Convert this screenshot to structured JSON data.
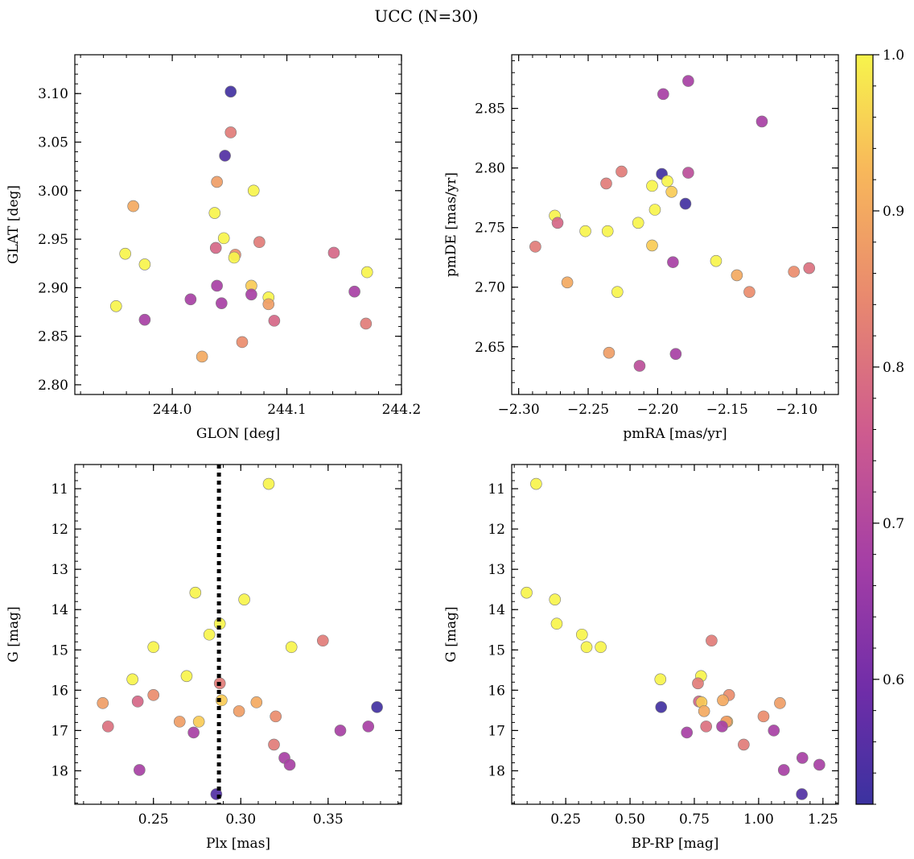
{
  "title": "UCC (N=30)",
  "colorbar": {
    "range": [
      0.52,
      1.0
    ],
    "ticks": [
      0.6,
      0.7,
      0.8,
      0.9,
      1.0
    ],
    "tick_labels": [
      "0.6",
      "0.7",
      "0.8",
      "0.9",
      "1.0"
    ],
    "colormap": "plasma"
  },
  "chart_data": [
    {
      "type": "scatter",
      "xlabel": "GLON [deg]",
      "ylabel": "GLAT [deg]",
      "xlim": [
        243.915,
        244.2
      ],
      "ylim": [
        2.79,
        3.14
      ],
      "xticks": [
        244.0,
        244.1,
        244.2
      ],
      "xtick_labels": [
        "244.0",
        "244.1",
        "244.2"
      ],
      "yticks": [
        2.8,
        2.85,
        2.9,
        2.95,
        3.0,
        3.05,
        3.1
      ],
      "ytick_labels": [
        "2.80",
        "2.85",
        "2.90",
        "2.95",
        "3.00",
        "3.05",
        "3.10"
      ],
      "points": [
        {
          "x": 244.051,
          "y": 3.102,
          "c": 0.53
        },
        {
          "x": 244.051,
          "y": 3.06,
          "c": 0.82
        },
        {
          "x": 244.046,
          "y": 3.036,
          "c": 0.55
        },
        {
          "x": 244.039,
          "y": 3.009,
          "c": 0.88
        },
        {
          "x": 244.071,
          "y": 3.0,
          "c": 1.0
        },
        {
          "x": 243.966,
          "y": 2.984,
          "c": 0.9
        },
        {
          "x": 244.037,
          "y": 2.977,
          "c": 1.0
        },
        {
          "x": 244.045,
          "y": 2.951,
          "c": 1.0
        },
        {
          "x": 244.076,
          "y": 2.947,
          "c": 0.82
        },
        {
          "x": 244.038,
          "y": 2.941,
          "c": 0.78
        },
        {
          "x": 243.959,
          "y": 2.935,
          "c": 1.0
        },
        {
          "x": 244.055,
          "y": 2.934,
          "c": 0.85
        },
        {
          "x": 244.054,
          "y": 2.931,
          "c": 1.0
        },
        {
          "x": 244.141,
          "y": 2.936,
          "c": 0.78
        },
        {
          "x": 243.976,
          "y": 2.924,
          "c": 1.0
        },
        {
          "x": 244.17,
          "y": 2.916,
          "c": 1.0
        },
        {
          "x": 244.039,
          "y": 2.902,
          "c": 0.68
        },
        {
          "x": 244.069,
          "y": 2.902,
          "c": 0.95
        },
        {
          "x": 244.159,
          "y": 2.896,
          "c": 0.68
        },
        {
          "x": 244.069,
          "y": 2.893,
          "c": 0.68
        },
        {
          "x": 244.084,
          "y": 2.89,
          "c": 1.0
        },
        {
          "x": 244.016,
          "y": 2.888,
          "c": 0.68
        },
        {
          "x": 244.043,
          "y": 2.884,
          "c": 0.68
        },
        {
          "x": 244.084,
          "y": 2.883,
          "c": 0.88
        },
        {
          "x": 243.951,
          "y": 2.881,
          "c": 1.0
        },
        {
          "x": 243.976,
          "y": 2.867,
          "c": 0.68
        },
        {
          "x": 244.089,
          "y": 2.866,
          "c": 0.78
        },
        {
          "x": 244.169,
          "y": 2.863,
          "c": 0.82
        },
        {
          "x": 244.061,
          "y": 2.844,
          "c": 0.85
        },
        {
          "x": 244.026,
          "y": 2.829,
          "c": 0.9
        }
      ]
    },
    {
      "type": "scatter",
      "xlabel": "pmRA [mas/yr]",
      "ylabel": "pmDE [mas/yr]",
      "xlim": [
        -2.305,
        -2.07
      ],
      "ylim": [
        2.61,
        2.895
      ],
      "xticks": [
        -2.3,
        -2.25,
        -2.2,
        -2.15,
        -2.1
      ],
      "xtick_labels": [
        "−2.30",
        "−2.25",
        "−2.20",
        "−2.15",
        "−2.10"
      ],
      "yticks": [
        2.65,
        2.7,
        2.75,
        2.8,
        2.85
      ],
      "ytick_labels": [
        "2.65",
        "2.70",
        "2.75",
        "2.80",
        "2.85"
      ],
      "points": [
        {
          "x": -2.178,
          "y": 2.873,
          "c": 0.68
        },
        {
          "x": -2.196,
          "y": 2.862,
          "c": 0.68
        },
        {
          "x": -2.125,
          "y": 2.839,
          "c": 0.68
        },
        {
          "x": -2.226,
          "y": 2.797,
          "c": 0.82
        },
        {
          "x": -2.178,
          "y": 2.796,
          "c": 0.72
        },
        {
          "x": -2.197,
          "y": 2.795,
          "c": 0.53
        },
        {
          "x": -2.193,
          "y": 2.789,
          "c": 1.0
        },
        {
          "x": -2.237,
          "y": 2.787,
          "c": 0.82
        },
        {
          "x": -2.204,
          "y": 2.785,
          "c": 1.0
        },
        {
          "x": -2.19,
          "y": 2.78,
          "c": 0.95
        },
        {
          "x": -2.18,
          "y": 2.77,
          "c": 0.53
        },
        {
          "x": -2.202,
          "y": 2.765,
          "c": 1.0
        },
        {
          "x": -2.274,
          "y": 2.76,
          "c": 1.0
        },
        {
          "x": -2.272,
          "y": 2.754,
          "c": 0.78
        },
        {
          "x": -2.214,
          "y": 2.754,
          "c": 1.0
        },
        {
          "x": -2.252,
          "y": 2.747,
          "c": 1.0
        },
        {
          "x": -2.236,
          "y": 2.747,
          "c": 1.0
        },
        {
          "x": -2.204,
          "y": 2.735,
          "c": 0.95
        },
        {
          "x": -2.288,
          "y": 2.734,
          "c": 0.82
        },
        {
          "x": -2.158,
          "y": 2.722,
          "c": 1.0
        },
        {
          "x": -2.189,
          "y": 2.721,
          "c": 0.68
        },
        {
          "x": -2.091,
          "y": 2.716,
          "c": 0.8
        },
        {
          "x": -2.102,
          "y": 2.713,
          "c": 0.85
        },
        {
          "x": -2.143,
          "y": 2.71,
          "c": 0.9
        },
        {
          "x": -2.265,
          "y": 2.704,
          "c": 0.9
        },
        {
          "x": -2.229,
          "y": 2.696,
          "c": 1.0
        },
        {
          "x": -2.134,
          "y": 2.696,
          "c": 0.85
        },
        {
          "x": -2.235,
          "y": 2.645,
          "c": 0.88
        },
        {
          "x": -2.187,
          "y": 2.644,
          "c": 0.68
        },
        {
          "x": -2.213,
          "y": 2.634,
          "c": 0.72
        }
      ]
    },
    {
      "type": "scatter",
      "xlabel": "Plx [mas]",
      "ylabel": "G [mag]",
      "xlim": [
        0.205,
        0.392
      ],
      "ylim": [
        18.83,
        10.4
      ],
      "y_inverted": true,
      "xticks": [
        0.25,
        0.3,
        0.35
      ],
      "xtick_labels": [
        "0.25",
        "0.30",
        "0.35"
      ],
      "yticks": [
        11,
        12,
        13,
        14,
        15,
        16,
        17,
        18
      ],
      "ytick_labels": [
        "11",
        "12",
        "13",
        "14",
        "15",
        "16",
        "17",
        "18"
      ],
      "vline": {
        "x": 0.2875,
        "style": "dotted",
        "color": "#000000"
      },
      "points": [
        {
          "x": 0.316,
          "y": 10.88,
          "c": 1.0
        },
        {
          "x": 0.274,
          "y": 13.58,
          "c": 1.0
        },
        {
          "x": 0.302,
          "y": 13.75,
          "c": 1.0
        },
        {
          "x": 0.288,
          "y": 14.35,
          "c": 1.0
        },
        {
          "x": 0.282,
          "y": 14.62,
          "c": 1.0
        },
        {
          "x": 0.347,
          "y": 14.77,
          "c": 0.82
        },
        {
          "x": 0.25,
          "y": 14.93,
          "c": 1.0
        },
        {
          "x": 0.329,
          "y": 14.93,
          "c": 1.0
        },
        {
          "x": 0.269,
          "y": 15.65,
          "c": 1.0
        },
        {
          "x": 0.238,
          "y": 15.73,
          "c": 1.0
        },
        {
          "x": 0.288,
          "y": 15.83,
          "c": 0.82
        },
        {
          "x": 0.25,
          "y": 16.12,
          "c": 0.85
        },
        {
          "x": 0.289,
          "y": 16.25,
          "c": 0.95
        },
        {
          "x": 0.241,
          "y": 16.28,
          "c": 0.78
        },
        {
          "x": 0.309,
          "y": 16.3,
          "c": 0.9
        },
        {
          "x": 0.221,
          "y": 16.32,
          "c": 0.88
        },
        {
          "x": 0.378,
          "y": 16.42,
          "c": 0.53
        },
        {
          "x": 0.299,
          "y": 16.52,
          "c": 0.88
        },
        {
          "x": 0.32,
          "y": 16.65,
          "c": 0.85
        },
        {
          "x": 0.265,
          "y": 16.78,
          "c": 0.88
        },
        {
          "x": 0.276,
          "y": 16.78,
          "c": 0.95
        },
        {
          "x": 0.224,
          "y": 16.9,
          "c": 0.8
        },
        {
          "x": 0.373,
          "y": 16.9,
          "c": 0.68
        },
        {
          "x": 0.357,
          "y": 17.0,
          "c": 0.68
        },
        {
          "x": 0.273,
          "y": 17.05,
          "c": 0.68
        },
        {
          "x": 0.319,
          "y": 17.35,
          "c": 0.82
        },
        {
          "x": 0.325,
          "y": 17.68,
          "c": 0.68
        },
        {
          "x": 0.328,
          "y": 17.85,
          "c": 0.68
        },
        {
          "x": 0.242,
          "y": 17.98,
          "c": 0.68
        },
        {
          "x": 0.286,
          "y": 18.58,
          "c": 0.55
        }
      ]
    },
    {
      "type": "scatter",
      "xlabel": "BP-RP [mag]",
      "ylabel": "G [mag]",
      "xlim": [
        0.04,
        1.31
      ],
      "ylim": [
        18.83,
        10.4
      ],
      "y_inverted": true,
      "xticks": [
        0.25,
        0.5,
        0.75,
        1.0,
        1.25
      ],
      "xtick_labels": [
        "0.25",
        "0.50",
        "0.75",
        "1.00",
        "1.25"
      ],
      "yticks": [
        11,
        12,
        13,
        14,
        15,
        16,
        17,
        18
      ],
      "ytick_labels": [
        "11",
        "12",
        "13",
        "14",
        "15",
        "16",
        "17",
        "18"
      ],
      "points": [
        {
          "x": 0.135,
          "y": 10.88,
          "c": 1.0
        },
        {
          "x": 0.098,
          "y": 13.58,
          "c": 1.0
        },
        {
          "x": 0.208,
          "y": 13.75,
          "c": 1.0
        },
        {
          "x": 0.215,
          "y": 14.35,
          "c": 1.0
        },
        {
          "x": 0.313,
          "y": 14.62,
          "c": 1.0
        },
        {
          "x": 0.331,
          "y": 14.93,
          "c": 1.0
        },
        {
          "x": 0.386,
          "y": 14.93,
          "c": 1.0
        },
        {
          "x": 0.817,
          "y": 14.77,
          "c": 0.82
        },
        {
          "x": 0.618,
          "y": 15.73,
          "c": 1.0
        },
        {
          "x": 0.776,
          "y": 15.65,
          "c": 1.0
        },
        {
          "x": 0.764,
          "y": 15.83,
          "c": 0.82
        },
        {
          "x": 0.885,
          "y": 16.12,
          "c": 0.85
        },
        {
          "x": 0.768,
          "y": 16.28,
          "c": 0.78
        },
        {
          "x": 0.778,
          "y": 16.3,
          "c": 0.95
        },
        {
          "x": 0.861,
          "y": 16.25,
          "c": 0.9
        },
        {
          "x": 1.083,
          "y": 16.32,
          "c": 0.88
        },
        {
          "x": 0.621,
          "y": 16.42,
          "c": 0.53
        },
        {
          "x": 0.788,
          "y": 16.52,
          "c": 0.9
        },
        {
          "x": 1.019,
          "y": 16.65,
          "c": 0.85
        },
        {
          "x": 0.878,
          "y": 16.78,
          "c": 0.95
        },
        {
          "x": 0.874,
          "y": 16.78,
          "c": 0.88
        },
        {
          "x": 0.796,
          "y": 16.9,
          "c": 0.8
        },
        {
          "x": 0.858,
          "y": 16.9,
          "c": 0.68
        },
        {
          "x": 1.059,
          "y": 17.0,
          "c": 0.68
        },
        {
          "x": 0.721,
          "y": 17.05,
          "c": 0.68
        },
        {
          "x": 0.942,
          "y": 17.35,
          "c": 0.82
        },
        {
          "x": 1.17,
          "y": 17.68,
          "c": 0.68
        },
        {
          "x": 1.236,
          "y": 17.85,
          "c": 0.68
        },
        {
          "x": 1.098,
          "y": 17.98,
          "c": 0.68
        },
        {
          "x": 1.168,
          "y": 18.58,
          "c": 0.55
        }
      ]
    }
  ]
}
